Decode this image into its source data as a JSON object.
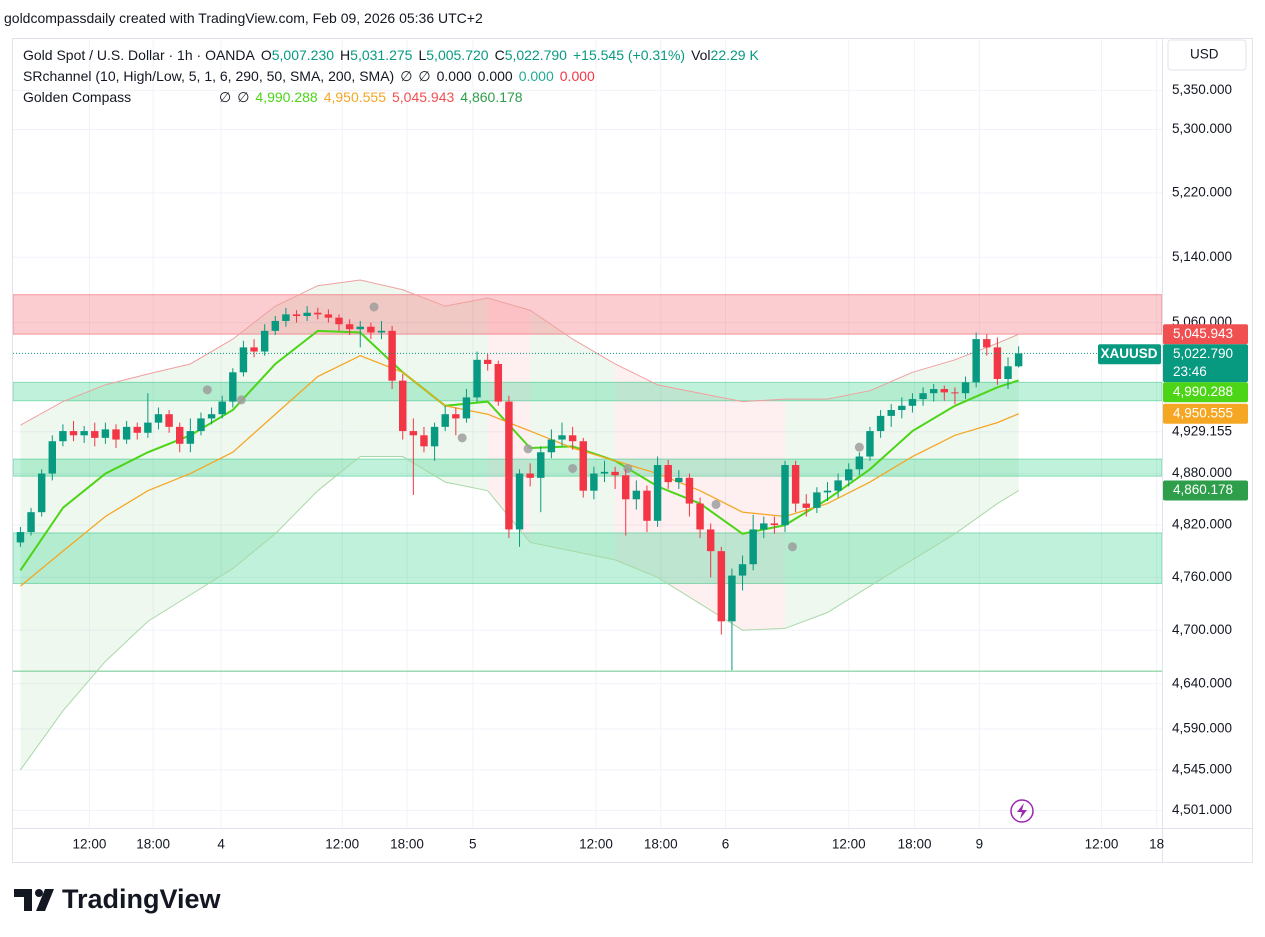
{
  "header": {
    "credit": "goldcompassdaily created with TradingView.com, Feb 09, 2026 05:36 UTC+2",
    "legend": [
      [
        {
          "text": "Gold Spot / U.S. Dollar · 1h · OANDA",
          "color": "#131722"
        },
        {
          "text": "O",
          "color": "#131722"
        },
        {
          "text": "5,007.230",
          "color": "#089981"
        },
        {
          "text": "H",
          "color": "#131722"
        },
        {
          "text": "5,031.275",
          "color": "#089981"
        },
        {
          "text": "L",
          "color": "#131722"
        },
        {
          "text": "5,005.720",
          "color": "#089981"
        },
        {
          "text": "C",
          "color": "#131722"
        },
        {
          "text": "5,022.790",
          "color": "#089981"
        },
        {
          "text": "+15.545 (+0.31%)",
          "color": "#089981"
        },
        {
          "text": "Vol",
          "color": "#131722"
        },
        {
          "text": "22.29 K",
          "color": "#089981"
        }
      ],
      [
        {
          "text": "SRchannel (10, High/Low, 5, 1, 6, 290, 50, SMA, 200, SMA)",
          "color": "#131722"
        },
        {
          "text": "∅",
          "color": "#131722"
        },
        {
          "text": "∅",
          "color": "#131722"
        },
        {
          "text": "0.000",
          "color": "#131722"
        },
        {
          "text": "0.000",
          "color": "#131722"
        },
        {
          "text": "0.000",
          "color": "#22ab94"
        },
        {
          "text": "0.000",
          "color": "#f23645"
        }
      ],
      [
        {
          "text": "Golden Compass",
          "color": "#131722"
        },
        {
          "text": "∅",
          "color": "#131722"
        },
        {
          "text": "∅",
          "color": "#131722"
        },
        {
          "text": "4,990.288",
          "color": "#4cd417"
        },
        {
          "text": "4,950.555",
          "color": "#f5a623"
        },
        {
          "text": "5,045.943",
          "color": "#f05050"
        },
        {
          "text": "4,860.178",
          "color": "#2e9e4a"
        }
      ]
    ]
  },
  "chart_data": {
    "type": "candlestick",
    "log_scale": true,
    "grid": true,
    "currency": "USD",
    "symbol": "XAUUSD",
    "countdown": "23:46",
    "ylim": [
      4480,
      5415
    ],
    "yticks": [
      {
        "value": 5350,
        "label": "5,350.000"
      },
      {
        "value": 5300,
        "label": "5,300.000"
      },
      {
        "value": 5220,
        "label": "5,220.000"
      },
      {
        "value": 5140,
        "label": "5,140.000"
      },
      {
        "value": 5060,
        "label": "5,060.000"
      },
      {
        "value": 4929.155,
        "label": "4,929.155"
      },
      {
        "value": 4880,
        "label": "4,880.000"
      },
      {
        "value": 4820,
        "label": "4,820.000"
      },
      {
        "value": 4760,
        "label": "4,760.000"
      },
      {
        "value": 4700,
        "label": "4,700.000"
      },
      {
        "value": 4640,
        "label": "4,640.000"
      },
      {
        "value": 4590,
        "label": "4,590.000"
      },
      {
        "value": 4545,
        "label": "4,545.000"
      },
      {
        "value": 4501,
        "label": "4,501.000"
      }
    ],
    "xlim": [
      -0.7,
      107.5
    ],
    "xticks": [
      {
        "value": 6.5,
        "label": "12:00"
      },
      {
        "value": 12.5,
        "label": "18:00"
      },
      {
        "value": 18.9,
        "label": "4"
      },
      {
        "value": 30.3,
        "label": "12:00"
      },
      {
        "value": 36.4,
        "label": "18:00"
      },
      {
        "value": 42.6,
        "label": "5"
      },
      {
        "value": 54.2,
        "label": "12:00"
      },
      {
        "value": 60.3,
        "label": "18:00"
      },
      {
        "value": 66.4,
        "label": "6"
      },
      {
        "value": 78,
        "label": "12:00"
      },
      {
        "value": 84.2,
        "label": "18:00"
      },
      {
        "value": 90.3,
        "label": "9"
      },
      {
        "value": 101.8,
        "label": "12:00"
      },
      {
        "value": 107,
        "label": "18"
      }
    ],
    "candles": {
      "up_color": "#089981",
      "down_color": "#f23645",
      "open": [
        4800,
        4812,
        4835,
        4880,
        4918,
        4930,
        4925,
        4930,
        4922,
        4932,
        4920,
        4935,
        4928,
        4940,
        4950,
        4935,
        4915,
        4930,
        4945,
        4950,
        4965,
        5000,
        5030,
        5025,
        5050,
        5062,
        5070,
        5068,
        5072,
        5070,
        5066,
        5058,
        5052,
        5055,
        5048,
        5050,
        4990,
        4930,
        4925,
        4912,
        4935,
        4950,
        4945,
        4970,
        5015,
        5010,
        4965,
        4815,
        4880,
        4875,
        4905,
        4920,
        4925,
        4918,
        4860,
        4880,
        4882,
        4878,
        4850,
        4860,
        4825,
        4890,
        4870,
        4875,
        4845,
        4815,
        4790,
        4710,
        4762,
        4775,
        4815,
        4822,
        4820,
        4890,
        4845,
        4840,
        4858,
        4860,
        4872,
        4885,
        4900,
        4930,
        4948,
        4955,
        4960,
        4968,
        4975,
        4980,
        4976,
        4975,
        4988,
        5040,
        5030,
        4992,
        5007.23
      ],
      "high": [
        4818,
        4840,
        4885,
        4925,
        4938,
        4942,
        4936,
        4940,
        4940,
        4938,
        4942,
        4940,
        4975,
        4958,
        4955,
        4940,
        4945,
        4952,
        4958,
        4972,
        5005,
        5038,
        5040,
        5058,
        5068,
        5078,
        5075,
        5080,
        5078,
        5076,
        5070,
        5064,
        5062,
        5060,
        5062,
        5056,
        4998,
        4945,
        4935,
        4940,
        4960,
        4958,
        4980,
        5025,
        5022,
        5014,
        4972,
        4885,
        4892,
        4912,
        4932,
        4940,
        4935,
        4922,
        4888,
        4895,
        4888,
        4885,
        4872,
        4866,
        4900,
        4896,
        4884,
        4880,
        4852,
        4822,
        4795,
        4770,
        4785,
        4832,
        4830,
        4830,
        4895,
        4895,
        4856,
        4864,
        4870,
        4880,
        4892,
        4905,
        4935,
        4955,
        4962,
        4970,
        4975,
        4982,
        4986,
        4984,
        4982,
        4995,
        5048,
        5046,
        5042,
        5018,
        5031.275
      ],
      "low": [
        4795,
        4808,
        4830,
        4872,
        4912,
        4918,
        4916,
        4912,
        4915,
        4910,
        4915,
        4920,
        4922,
        4932,
        4928,
        4905,
        4905,
        4925,
        4938,
        4945,
        4958,
        4995,
        5018,
        5020,
        5045,
        5055,
        5060,
        5062,
        5064,
        5060,
        5050,
        5045,
        5030,
        5040,
        5040,
        4980,
        4920,
        4855,
        4905,
        4895,
        4930,
        4925,
        4940,
        4965,
        5002,
        4960,
        4805,
        4795,
        4865,
        4835,
        4898,
        4912,
        4908,
        4852,
        4850,
        4870,
        4862,
        4808,
        4838,
        4812,
        4818,
        4862,
        4862,
        4830,
        4805,
        4760,
        4695,
        4655,
        4745,
        4768,
        4805,
        4810,
        4812,
        4835,
        4830,
        4834,
        4848,
        4852,
        4865,
        4878,
        4895,
        4922,
        4935,
        4945,
        4952,
        4960,
        4965,
        4966,
        4962,
        4968,
        4982,
        5020,
        4985,
        4980,
        5005.72
      ],
      "close": [
        4812,
        4835,
        4880,
        4918,
        4930,
        4925,
        4930,
        4922,
        4932,
        4920,
        4935,
        4928,
        4940,
        4950,
        4935,
        4915,
        4930,
        4945,
        4950,
        4965,
        5000,
        5030,
        5025,
        5050,
        5062,
        5070,
        5068,
        5072,
        5070,
        5066,
        5058,
        5052,
        5055,
        5048,
        5050,
        4990,
        4930,
        4925,
        4912,
        4935,
        4950,
        4945,
        4970,
        5015,
        5010,
        4965,
        4815,
        4880,
        4875,
        4905,
        4920,
        4925,
        4918,
        4860,
        4880,
        4882,
        4878,
        4850,
        4860,
        4825,
        4890,
        4870,
        4875,
        4845,
        4815,
        4790,
        4710,
        4762,
        4775,
        4815,
        4822,
        4820,
        4890,
        4845,
        4840,
        4858,
        4860,
        4872,
        4885,
        4900,
        4930,
        4948,
        4955,
        4960,
        4968,
        4975,
        4980,
        4976,
        4975,
        4988,
        5040,
        5030,
        4992,
        5007.23,
        5022.79
      ]
    },
    "band": {
      "color": "#f0a0a0",
      "lower_color": "#a8d8a8",
      "fill_up": "rgba(76,175,80,0.09)",
      "fill_down": "rgba(242,54,69,0.08)",
      "x": [
        0,
        4,
        8,
        12,
        16,
        20,
        24,
        28,
        32,
        36,
        40,
        44,
        48,
        52,
        56,
        60,
        64,
        68,
        72,
        76,
        80,
        84,
        88,
        92,
        94
      ],
      "upper": [
        4937,
        4965,
        4985,
        4998,
        5010,
        5040,
        5080,
        5105,
        5112,
        5100,
        5080,
        5090,
        5075,
        5040,
        5010,
        4985,
        4975,
        4965,
        4968,
        4968,
        4978,
        5000,
        5015,
        5035,
        5045.943
      ],
      "lower": [
        4545,
        4610,
        4665,
        4710,
        4740,
        4770,
        4810,
        4860,
        4900,
        4900,
        4870,
        4860,
        4800,
        4790,
        4780,
        4760,
        4730,
        4700,
        4702,
        4720,
        4750,
        4780,
        4810,
        4845,
        4860.178
      ]
    },
    "lines": [
      {
        "color": "#4cd417",
        "width": 2,
        "x": [
          0,
          4,
          8,
          12,
          16,
          20,
          24,
          28,
          32,
          36,
          40,
          44,
          48,
          52,
          56,
          60,
          64,
          68,
          72,
          76,
          80,
          84,
          88,
          92,
          94
        ],
        "values": [
          4768,
          4840,
          4880,
          4905,
          4925,
          4955,
          5010,
          5050,
          5048,
          5000,
          4960,
          4965,
          4910,
          4912,
          4895,
          4865,
          4845,
          4810,
          4820,
          4850,
          4885,
          4930,
          4960,
          4982,
          4990.288
        ]
      },
      {
        "color": "#f5a623",
        "width": 1.3,
        "x": [
          0,
          4,
          8,
          12,
          16,
          20,
          24,
          28,
          32,
          36,
          40,
          44,
          48,
          52,
          56,
          60,
          64,
          68,
          72,
          76,
          80,
          84,
          88,
          92,
          94
        ],
        "values": [
          4750,
          4790,
          4830,
          4860,
          4880,
          4905,
          4950,
          4995,
          5020,
          5000,
          4960,
          4950,
          4930,
          4910,
          4895,
          4880,
          4860,
          4835,
          4830,
          4845,
          4870,
          4900,
          4925,
          4940,
          4950.555
        ]
      }
    ],
    "zones": [
      {
        "low": 5046,
        "high": 5094,
        "color": "rgba(242,54,69,0.25)",
        "stroke": "rgba(242,54,69,0.45)"
      },
      {
        "low": 4966,
        "high": 4988,
        "color": "rgba(0,200,110,0.25)",
        "stroke": "rgba(0,180,100,0.4)"
      },
      {
        "low": 4877,
        "high": 4897,
        "color": "rgba(0,200,110,0.25)",
        "stroke": "rgba(0,180,100,0.4)"
      },
      {
        "low": 4753,
        "high": 4811,
        "color": "rgba(0,200,110,0.25)",
        "stroke": "rgba(0,180,100,0.4)"
      }
    ],
    "support_line": 4654,
    "markers": {
      "color": "#9e9e9e",
      "x": [
        17.6,
        20.8,
        33.3,
        41.6,
        47.8,
        52,
        57.2,
        65.5,
        72.7,
        79
      ],
      "values": [
        4979,
        4967,
        5079,
        4922,
        4909,
        4886,
        4886,
        4844,
        4795,
        4911
      ]
    },
    "price_tags": [
      {
        "value": 5045.943,
        "label": "5,045.943",
        "color": "#f05050"
      },
      {
        "value": 5022.79,
        "label": "5,022.790",
        "color": "#089981"
      },
      {
        "value": 4990.288,
        "label": "4,990.288",
        "color": "#4cd417"
      },
      {
        "value": 4950.555,
        "label": "4,950.555",
        "color": "#f5a623"
      },
      {
        "value": 4860.178,
        "label": "4,860.178",
        "color": "#2e9e4a"
      }
    ]
  },
  "footer": {
    "brand": "TradingView"
  }
}
